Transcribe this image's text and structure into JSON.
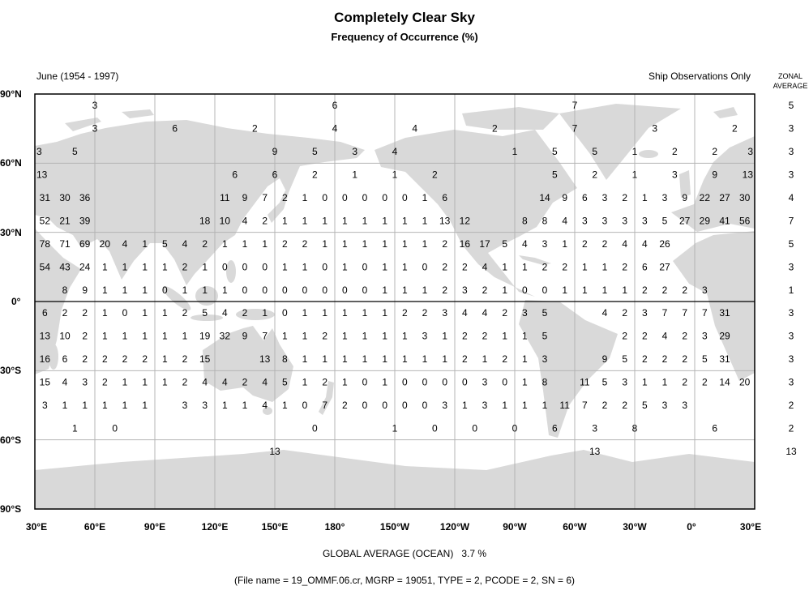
{
  "header": {
    "title": "Completely Clear Sky",
    "subtitle": "Frequency of Occurrence (%)",
    "period": "June (1954 - 1997)",
    "source_note": "Ship Observations Only",
    "zonal_header_line1": "ZONAL",
    "zonal_header_line2": "AVERAGE"
  },
  "axes": {
    "lat_ticks": [
      "90°N",
      "60°N",
      "30°N",
      "0°",
      "30°S",
      "60°S",
      "90°S"
    ],
    "lon_ticks": [
      "30°E",
      "60°E",
      "90°E",
      "120°E",
      "150°E",
      "180°",
      "150°W",
      "120°W",
      "90°W",
      "60°W",
      "30°W",
      "0°",
      "30°E"
    ]
  },
  "footer": {
    "global_average_label": "GLOBAL AVERAGE (OCEAN)",
    "global_average_value": "3.7 %",
    "file_info": "(File name = 19_OMMF.06.cr, MGRP = 19051, TYPE = 2, PCODE = 2, SN = 6)"
  },
  "colors": {
    "land": "#d9d9d9",
    "grid": "#b4b4b4",
    "frame": "#000000"
  },
  "map_data": {
    "projection": "equirectangular, 30°E to 30°E",
    "rows": [
      {
        "lat": 85,
        "lon_start": 60,
        "lon_step": 120,
        "values": [
          3,
          6,
          7
        ]
      },
      {
        "lat": 75,
        "lon_start": 60,
        "lon_step": 40,
        "values": [
          3,
          6,
          2,
          4,
          4,
          2,
          7,
          3,
          2
        ]
      },
      {
        "lat": 65,
        "lon_start": 30,
        "lon_step": 20,
        "values": [
          3,
          5,
          null,
          null,
          null,
          null,
          9,
          5,
          3,
          4,
          null,
          null,
          1,
          5,
          5,
          1,
          2,
          2,
          3
        ]
      },
      {
        "lat": 55,
        "lon_start": 30,
        "lon_step": 20,
        "values": [
          13,
          null,
          null,
          null,
          null,
          6,
          6,
          2,
          1,
          1,
          2,
          null,
          null,
          5,
          2,
          1,
          3,
          9,
          13
        ]
      },
      {
        "lat": 45,
        "lon_start": 35,
        "lon_step": 10,
        "values": [
          31,
          30,
          36,
          null,
          null,
          null,
          null,
          null,
          null,
          11,
          9,
          7,
          2,
          1,
          0,
          0,
          0,
          0,
          0,
          1,
          6,
          null,
          null,
          null,
          null,
          14,
          9,
          6,
          3,
          2,
          1,
          3,
          9,
          22,
          27,
          30
        ]
      },
      {
        "lat": 35,
        "lon_start": 35,
        "lon_step": 10,
        "values": [
          52,
          21,
          39,
          null,
          null,
          null,
          null,
          null,
          18,
          10,
          4,
          2,
          1,
          1,
          1,
          1,
          1,
          1,
          1,
          1,
          13,
          12,
          null,
          null,
          8,
          8,
          4,
          3,
          3,
          3,
          3,
          5,
          27,
          29,
          41,
          56
        ]
      },
      {
        "lat": 25,
        "lon_start": 35,
        "lon_step": 10,
        "values": [
          78,
          71,
          69,
          20,
          4,
          1,
          5,
          4,
          2,
          1,
          1,
          1,
          2,
          2,
          1,
          1,
          1,
          1,
          1,
          1,
          2,
          16,
          17,
          5,
          4,
          3,
          1,
          2,
          2,
          4,
          4,
          26,
          null,
          null,
          null,
          null
        ]
      },
      {
        "lat": 15,
        "lon_start": 35,
        "lon_step": 10,
        "values": [
          54,
          43,
          24,
          1,
          1,
          1,
          1,
          2,
          1,
          0,
          0,
          0,
          1,
          1,
          0,
          1,
          0,
          1,
          1,
          0,
          2,
          2,
          4,
          1,
          1,
          2,
          2,
          1,
          1,
          2,
          6,
          27,
          null,
          null,
          null,
          null
        ]
      },
      {
        "lat": 5,
        "lon_start": 35,
        "lon_step": 10,
        "values": [
          null,
          8,
          9,
          1,
          1,
          1,
          0,
          1,
          1,
          1,
          0,
          0,
          0,
          0,
          0,
          0,
          0,
          1,
          1,
          1,
          2,
          3,
          2,
          1,
          0,
          0,
          1,
          1,
          1,
          1,
          2,
          2,
          2,
          3,
          null,
          null
        ]
      },
      {
        "lat": -5,
        "lon_start": 35,
        "lon_step": 10,
        "values": [
          6,
          2,
          2,
          1,
          0,
          1,
          1,
          2,
          5,
          4,
          2,
          1,
          0,
          1,
          1,
          1,
          1,
          1,
          2,
          2,
          3,
          4,
          4,
          2,
          3,
          5,
          null,
          null,
          4,
          2,
          3,
          7,
          7,
          7,
          31,
          null
        ]
      },
      {
        "lat": -15,
        "lon_start": 35,
        "lon_step": 10,
        "values": [
          13,
          10,
          2,
          1,
          1,
          1,
          1,
          1,
          19,
          32,
          9,
          7,
          1,
          1,
          2,
          1,
          1,
          1,
          1,
          3,
          1,
          2,
          2,
          1,
          1,
          5,
          null,
          null,
          null,
          2,
          2,
          4,
          2,
          3,
          29,
          null
        ]
      },
      {
        "lat": -25,
        "lon_start": 35,
        "lon_step": 10,
        "values": [
          16,
          6,
          2,
          2,
          2,
          2,
          1,
          2,
          15,
          null,
          null,
          13,
          8,
          1,
          1,
          1,
          1,
          1,
          1,
          1,
          1,
          2,
          1,
          2,
          1,
          3,
          null,
          null,
          9,
          5,
          2,
          2,
          2,
          5,
          31,
          null
        ]
      },
      {
        "lat": -35,
        "lon_start": 35,
        "lon_step": 10,
        "values": [
          15,
          4,
          3,
          2,
          1,
          1,
          1,
          2,
          4,
          4,
          2,
          4,
          5,
          1,
          2,
          1,
          0,
          1,
          0,
          0,
          0,
          0,
          3,
          0,
          1,
          8,
          null,
          11,
          5,
          3,
          1,
          1,
          2,
          2,
          14,
          20
        ]
      },
      {
        "lat": -45,
        "lon_start": 35,
        "lon_step": 10,
        "values": [
          3,
          1,
          1,
          1,
          1,
          1,
          null,
          3,
          3,
          1,
          1,
          4,
          1,
          0,
          7,
          2,
          0,
          0,
          0,
          0,
          3,
          1,
          3,
          1,
          1,
          1,
          11,
          7,
          2,
          2,
          5,
          3,
          3,
          null,
          null,
          null
        ]
      },
      {
        "lat": -55,
        "lon_start": 30,
        "lon_step": 20,
        "values": [
          null,
          1,
          0,
          null,
          null,
          null,
          null,
          0,
          null,
          1,
          0,
          0,
          0,
          6,
          3,
          8,
          null,
          6
        ]
      },
      {
        "lat": -65,
        "lon_start": 150,
        "lon_step": 160,
        "values": [
          13,
          13
        ]
      }
    ],
    "zonal_averages": [
      5,
      3,
      3,
      3,
      4,
      7,
      5,
      3,
      1,
      3,
      3,
      3,
      3,
      2,
      2,
      13
    ]
  }
}
